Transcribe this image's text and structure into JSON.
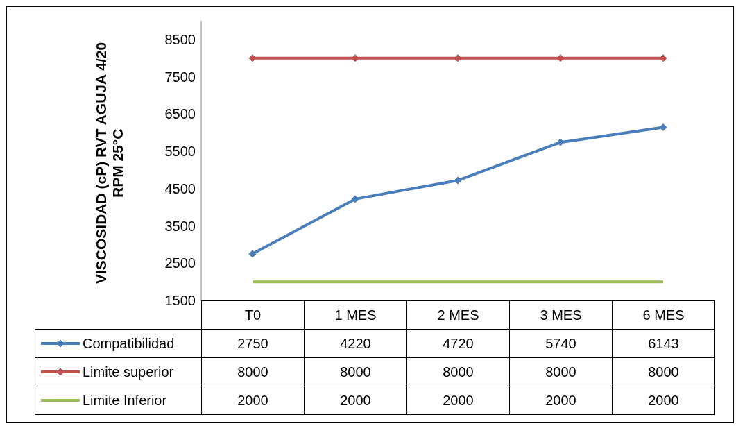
{
  "chart_data": {
    "type": "line",
    "ylabel": "VISCOSIDAD (cP) RVT AGUJA 4/20 RPM 25°C",
    "categories": [
      "T0",
      "1 MES",
      "2 MES",
      "3 MES",
      "6 MES"
    ],
    "series": [
      {
        "name": "Compatibilidad",
        "color": "#4a7ebb",
        "marker": "diamond",
        "values": [
          2750,
          4220,
          4720,
          5740,
          6143
        ]
      },
      {
        "name": "Limite superior",
        "color": "#c0504d",
        "marker": "diamond",
        "values": [
          8000,
          8000,
          8000,
          8000,
          8000
        ]
      },
      {
        "name": "Limite Inferior",
        "color": "#9bbb59",
        "marker": "none",
        "values": [
          2000,
          2000,
          2000,
          2000,
          2000
        ]
      }
    ],
    "ylim": [
      1500,
      9000
    ],
    "yticks": [
      1500,
      2500,
      3500,
      4500,
      5500,
      6500,
      7500,
      8500
    ],
    "grid": false,
    "legend": "bottom",
    "data_labels": true,
    "line_style": "solid"
  }
}
